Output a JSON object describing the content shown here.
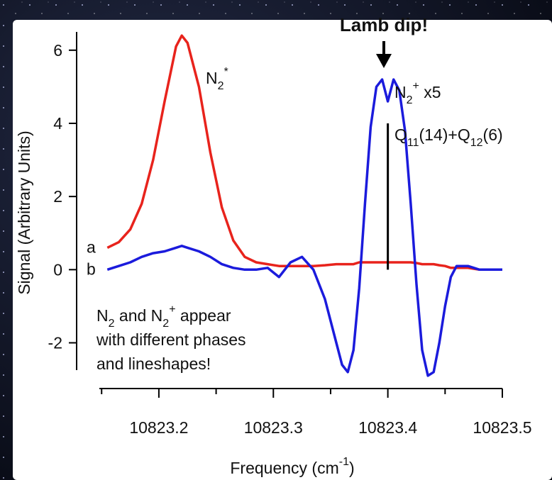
{
  "chart_data": {
    "type": "line",
    "title": "Lamb dip!",
    "x_label": [
      "Frequency (cm",
      {
        "sup": "-1"
      },
      ")"
    ],
    "y_label": "Signal (Arbitrary Units)",
    "x": [
      10823.155,
      10823.165,
      10823.175,
      10823.185,
      10823.195,
      10823.205,
      10823.215,
      10823.22,
      10823.225,
      10823.235,
      10823.245,
      10823.255,
      10823.265,
      10823.275,
      10823.285,
      10823.295,
      10823.305,
      10823.315,
      10823.325,
      10823.335,
      10823.345,
      10823.355,
      10823.36,
      10823.365,
      10823.37,
      10823.375,
      10823.38,
      10823.385,
      10823.39,
      10823.395,
      10823.4,
      10823.405,
      10823.41,
      10823.415,
      10823.42,
      10823.425,
      10823.43,
      10823.435,
      10823.44,
      10823.445,
      10823.45,
      10823.455,
      10823.46,
      10823.47,
      10823.48,
      10823.49,
      10823.5
    ],
    "series": [
      {
        "name": "a",
        "color": "#e8231c",
        "values": [
          0.6,
          0.75,
          1.1,
          1.8,
          3.0,
          4.6,
          6.1,
          6.4,
          6.2,
          5.0,
          3.2,
          1.7,
          0.8,
          0.35,
          0.2,
          0.15,
          0.1,
          0.1,
          0.1,
          0.1,
          0.12,
          0.15,
          0.15,
          0.15,
          0.15,
          0.2,
          0.2,
          0.2,
          0.2,
          0.2,
          0.2,
          0.2,
          0.2,
          0.2,
          0.2,
          0.18,
          0.15,
          0.15,
          0.15,
          0.12,
          0.1,
          0.05,
          0.05,
          0.05,
          0.0,
          0.0,
          0.0
        ]
      },
      {
        "name": "b",
        "color": "#1b1bdc",
        "values": [
          0.0,
          0.1,
          0.2,
          0.35,
          0.45,
          0.5,
          0.6,
          0.65,
          0.6,
          0.5,
          0.35,
          0.15,
          0.05,
          0.0,
          0.0,
          0.05,
          -0.2,
          0.2,
          0.35,
          0.0,
          -0.8,
          -2.0,
          -2.6,
          -2.8,
          -2.2,
          -0.5,
          1.8,
          3.9,
          5.0,
          5.2,
          4.6,
          5.2,
          4.9,
          3.8,
          1.8,
          -0.4,
          -2.2,
          -2.9,
          -2.8,
          -2.0,
          -1.0,
          -0.2,
          0.1,
          0.1,
          0.0,
          0.0,
          0.0
        ]
      }
    ],
    "xlim": [
      10823.148,
      10823.5
    ],
    "ylim": [
      -3.25,
      6.5
    ],
    "xticks": [
      10823.2,
      10823.3,
      10823.4,
      10823.5
    ],
    "xminor": [
      10823.15,
      10823.25,
      10823.35,
      10823.45
    ],
    "yticks": [
      -2,
      0,
      2,
      4,
      6
    ],
    "stick": {
      "x": 10823.4,
      "y": 4
    },
    "annotations": [
      [
        "N",
        {
          "sub": "2"
        },
        {
          "sup": "*"
        }
      ],
      [
        "N",
        {
          "sub": "2"
        },
        {
          "sup": "+"
        },
        " x5"
      ],
      [
        "Q",
        {
          "sub": "11"
        },
        "(14)+Q",
        {
          "sub": "12"
        },
        "(6)"
      ]
    ],
    "note": [
      [
        "N",
        {
          "sub": "2"
        },
        " and N",
        {
          "sub": "2"
        },
        {
          "sup": "+"
        },
        " appear"
      ],
      [
        "with different phases"
      ],
      [
        "and lineshapes!"
      ]
    ]
  }
}
